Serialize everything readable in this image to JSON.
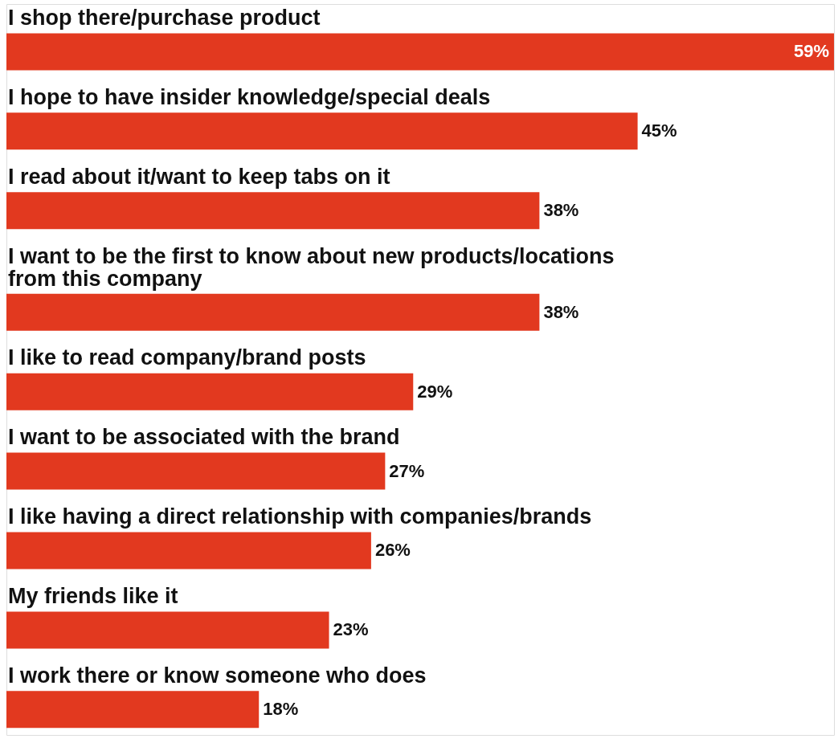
{
  "chart_data": {
    "type": "bar",
    "orientation": "horizontal",
    "color": "#e2391f",
    "categories": [
      "I shop there/purchase product",
      "I hope to have insider knowledge/special deals",
      "I read about it/want to keep tabs on it",
      "I want to be the first to know about new products/locations from this company",
      "I like to read company/brand posts",
      "I want to be associated with the brand",
      "I like having a direct relationship with companies/brands",
      "My friends like it",
      "I work there or know someone who does"
    ],
    "values": [
      59,
      45,
      38,
      38,
      29,
      27,
      26,
      23,
      18
    ],
    "value_labels": [
      "59%",
      "45%",
      "38%",
      "38%",
      "29%",
      "27%",
      "26%",
      "23%",
      "18%"
    ],
    "data_labels": false
  }
}
